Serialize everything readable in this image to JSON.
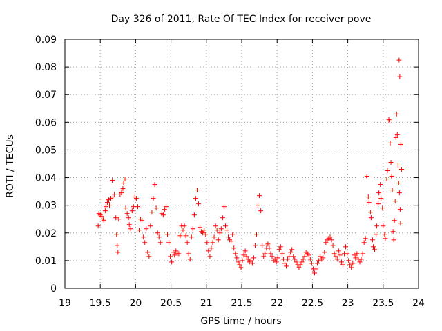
{
  "chart_data": {
    "type": "scatter",
    "title": "Day 326 of 2011, Rate Of TEC Index for receiver pove",
    "xlabel": "GPS time / hours",
    "ylabel": "ROTI / TECUs",
    "xlim": [
      19,
      24
    ],
    "ylim": [
      0,
      0.09
    ],
    "xticks": [
      19,
      19.5,
      20,
      20.5,
      21,
      21.5,
      22,
      22.5,
      23,
      23.5,
      24
    ],
    "xtick_labels": [
      "19",
      "19.5",
      "20",
      "20.5",
      "21",
      "21.5",
      "22",
      "22.5",
      "23",
      "23.5",
      "24"
    ],
    "yticks": [
      0,
      0.01,
      0.02,
      0.03,
      0.04,
      0.05,
      0.06,
      0.07,
      0.08,
      0.09
    ],
    "ytick_labels": [
      "0",
      "0.01",
      "0.02",
      "0.03",
      "0.04",
      "0.05",
      "0.06",
      "0.07",
      "0.08",
      "0.09"
    ],
    "grid": true,
    "marker": "+",
    "color": "#ff0000",
    "series": [
      {
        "name": "ROTI",
        "points": [
          [
            19.47,
            0.0225
          ],
          [
            19.48,
            0.027
          ],
          [
            19.5,
            0.0265
          ],
          [
            19.52,
            0.026
          ],
          [
            19.54,
            0.025
          ],
          [
            19.55,
            0.0245
          ],
          [
            19.57,
            0.028
          ],
          [
            19.58,
            0.0295
          ],
          [
            19.6,
            0.031
          ],
          [
            19.62,
            0.032
          ],
          [
            19.63,
            0.03
          ],
          [
            19.65,
            0.0325
          ],
          [
            19.67,
            0.039
          ],
          [
            19.68,
            0.033
          ],
          [
            19.7,
            0.034
          ],
          [
            19.72,
            0.0255
          ],
          [
            19.73,
            0.0195
          ],
          [
            19.74,
            0.0155
          ],
          [
            19.75,
            0.013
          ],
          [
            19.76,
            0.025
          ],
          [
            19.78,
            0.034
          ],
          [
            19.8,
            0.0345
          ],
          [
            19.82,
            0.036
          ],
          [
            19.83,
            0.038
          ],
          [
            19.85,
            0.0395
          ],
          [
            19.86,
            0.029
          ],
          [
            19.88,
            0.027
          ],
          [
            19.9,
            0.0255
          ],
          [
            19.91,
            0.023
          ],
          [
            19.93,
            0.0215
          ],
          [
            19.95,
            0.028
          ],
          [
            19.97,
            0.0295
          ],
          [
            19.99,
            0.033
          ],
          [
            20.01,
            0.0325
          ],
          [
            20.03,
            0.0295
          ],
          [
            20.05,
            0.021
          ],
          [
            20.07,
            0.025
          ],
          [
            20.09,
            0.0245
          ],
          [
            20.11,
            0.0185
          ],
          [
            20.13,
            0.0165
          ],
          [
            20.15,
            0.0215
          ],
          [
            20.17,
            0.013
          ],
          [
            20.19,
            0.0115
          ],
          [
            20.21,
            0.0225
          ],
          [
            20.23,
            0.0275
          ],
          [
            20.25,
            0.0325
          ],
          [
            20.27,
            0.0375
          ],
          [
            20.29,
            0.029
          ],
          [
            20.31,
            0.02
          ],
          [
            20.33,
            0.0185
          ],
          [
            20.35,
            0.0165
          ],
          [
            20.37,
            0.027
          ],
          [
            20.39,
            0.0265
          ],
          [
            20.41,
            0.0285
          ],
          [
            20.43,
            0.0295
          ],
          [
            20.45,
            0.0195
          ],
          [
            20.47,
            0.0165
          ],
          [
            20.49,
            0.0115
          ],
          [
            20.51,
            0.0095
          ],
          [
            20.53,
            0.013
          ],
          [
            20.55,
            0.012
          ],
          [
            20.57,
            0.0135
          ],
          [
            20.59,
            0.0125
          ],
          [
            20.61,
            0.0125
          ],
          [
            20.63,
            0.019
          ],
          [
            20.65,
            0.0225
          ],
          [
            20.67,
            0.021
          ],
          [
            20.69,
            0.0225
          ],
          [
            20.71,
            0.019
          ],
          [
            20.73,
            0.0165
          ],
          [
            20.75,
            0.0125
          ],
          [
            20.77,
            0.0105
          ],
          [
            20.79,
            0.0185
          ],
          [
            20.81,
            0.0215
          ],
          [
            20.83,
            0.0265
          ],
          [
            20.85,
            0.0325
          ],
          [
            20.87,
            0.0355
          ],
          [
            20.89,
            0.0305
          ],
          [
            20.91,
            0.022
          ],
          [
            20.93,
            0.0205
          ],
          [
            20.95,
            0.02
          ],
          [
            20.97,
            0.021
          ],
          [
            20.99,
            0.0195
          ],
          [
            21.01,
            0.0165
          ],
          [
            21.03,
            0.0135
          ],
          [
            21.05,
            0.0115
          ],
          [
            21.07,
            0.0145
          ],
          [
            21.09,
            0.0165
          ],
          [
            21.11,
            0.0185
          ],
          [
            21.13,
            0.0225
          ],
          [
            21.15,
            0.021
          ],
          [
            21.17,
            0.0175
          ],
          [
            21.19,
            0.02
          ],
          [
            21.21,
            0.0215
          ],
          [
            21.23,
            0.0255
          ],
          [
            21.25,
            0.0295
          ],
          [
            21.27,
            0.0225
          ],
          [
            21.29,
            0.021
          ],
          [
            21.31,
            0.0185
          ],
          [
            21.33,
            0.0175
          ],
          [
            21.35,
            0.017
          ],
          [
            21.37,
            0.0195
          ],
          [
            21.39,
            0.0145
          ],
          [
            21.41,
            0.0125
          ],
          [
            21.43,
            0.011
          ],
          [
            21.45,
            0.0095
          ],
          [
            21.47,
            0.0085
          ],
          [
            21.49,
            0.0075
          ],
          [
            21.51,
            0.01
          ],
          [
            21.53,
            0.012
          ],
          [
            21.55,
            0.0135
          ],
          [
            21.57,
            0.0115
          ],
          [
            21.59,
            0.0105
          ],
          [
            21.61,
            0.0095
          ],
          [
            21.63,
            0.01
          ],
          [
            21.65,
            0.009
          ],
          [
            21.67,
            0.011
          ],
          [
            21.69,
            0.0155
          ],
          [
            21.71,
            0.0195
          ],
          [
            21.73,
            0.03
          ],
          [
            21.75,
            0.0335
          ],
          [
            21.77,
            0.028
          ],
          [
            21.79,
            0.0155
          ],
          [
            21.81,
            0.0115
          ],
          [
            21.83,
            0.0125
          ],
          [
            21.85,
            0.0145
          ],
          [
            21.87,
            0.016
          ],
          [
            21.89,
            0.0145
          ],
          [
            21.91,
            0.0125
          ],
          [
            21.93,
            0.0115
          ],
          [
            21.95,
            0.01
          ],
          [
            21.97,
            0.0105
          ],
          [
            21.99,
            0.0095
          ],
          [
            22.01,
            0.011
          ],
          [
            22.03,
            0.014
          ],
          [
            22.05,
            0.015
          ],
          [
            22.07,
            0.0125
          ],
          [
            22.09,
            0.0105
          ],
          [
            22.11,
            0.009
          ],
          [
            22.13,
            0.008
          ],
          [
            22.15,
            0.0105
          ],
          [
            22.17,
            0.0115
          ],
          [
            22.19,
            0.013
          ],
          [
            22.21,
            0.014
          ],
          [
            22.23,
            0.0115
          ],
          [
            22.25,
            0.0105
          ],
          [
            22.27,
            0.0095
          ],
          [
            22.29,
            0.0085
          ],
          [
            22.31,
            0.0075
          ],
          [
            22.33,
            0.0085
          ],
          [
            22.35,
            0.0095
          ],
          [
            22.37,
            0.0105
          ],
          [
            22.39,
            0.0115
          ],
          [
            22.41,
            0.013
          ],
          [
            22.43,
            0.0125
          ],
          [
            22.45,
            0.012
          ],
          [
            22.47,
            0.0105
          ],
          [
            22.49,
            0.009
          ],
          [
            22.51,
            0.007
          ],
          [
            22.53,
            0.0055
          ],
          [
            22.55,
            0.007
          ],
          [
            22.57,
            0.009
          ],
          [
            22.59,
            0.01
          ],
          [
            22.61,
            0.0115
          ],
          [
            22.63,
            0.0105
          ],
          [
            22.65,
            0.011
          ],
          [
            22.67,
            0.013
          ],
          [
            22.69,
            0.0165
          ],
          [
            22.71,
            0.0175
          ],
          [
            22.73,
            0.018
          ],
          [
            22.75,
            0.0185
          ],
          [
            22.77,
            0.0175
          ],
          [
            22.79,
            0.0155
          ],
          [
            22.81,
            0.0125
          ],
          [
            22.83,
            0.0115
          ],
          [
            22.85,
            0.0105
          ],
          [
            22.87,
            0.0135
          ],
          [
            22.89,
            0.012
          ],
          [
            22.91,
            0.0095
          ],
          [
            22.93,
            0.0085
          ],
          [
            22.95,
            0.0125
          ],
          [
            22.97,
            0.015
          ],
          [
            22.99,
            0.0125
          ],
          [
            23.01,
            0.01
          ],
          [
            23.03,
            0.0085
          ],
          [
            23.05,
            0.0075
          ],
          [
            23.07,
            0.009
          ],
          [
            23.09,
            0.012
          ],
          [
            23.11,
            0.011
          ],
          [
            23.13,
            0.0125
          ],
          [
            23.15,
            0.0105
          ],
          [
            23.17,
            0.0095
          ],
          [
            23.19,
            0.0105
          ],
          [
            23.21,
            0.0125
          ],
          [
            23.23,
            0.0165
          ],
          [
            23.25,
            0.018
          ],
          [
            23.27,
            0.0405
          ],
          [
            23.29,
            0.033
          ],
          [
            23.3,
            0.031
          ],
          [
            23.32,
            0.0275
          ],
          [
            23.33,
            0.0255
          ],
          [
            23.35,
            0.0175
          ],
          [
            23.36,
            0.015
          ],
          [
            23.38,
            0.014
          ],
          [
            23.4,
            0.0195
          ],
          [
            23.41,
            0.0225
          ],
          [
            23.43,
            0.0305
          ],
          [
            23.44,
            0.0345
          ],
          [
            23.46,
            0.0375
          ],
          [
            23.47,
            0.0325
          ],
          [
            23.49,
            0.029
          ],
          [
            23.5,
            0.0225
          ],
          [
            23.52,
            0.0195
          ],
          [
            23.53,
            0.018
          ],
          [
            23.55,
            0.0395
          ],
          [
            23.56,
            0.0425
          ],
          [
            23.58,
            0.061
          ],
          [
            23.59,
            0.0605
          ],
          [
            23.6,
            0.0525
          ],
          [
            23.61,
            0.0455
          ],
          [
            23.62,
            0.0405
          ],
          [
            23.63,
            0.0355
          ],
          [
            23.64,
            0.0205
          ],
          [
            23.65,
            0.0175
          ],
          [
            23.66,
            0.0245
          ],
          [
            23.67,
            0.0315
          ],
          [
            23.68,
            0.0545
          ],
          [
            23.69,
            0.063
          ],
          [
            23.7,
            0.0555
          ],
          [
            23.71,
            0.0445
          ],
          [
            23.72,
            0.038
          ],
          [
            23.73,
            0.0345
          ],
          [
            23.74,
            0.0285
          ],
          [
            23.745,
            0.0235
          ],
          [
            23.75,
            0.052
          ],
          [
            23.76,
            0.043
          ],
          [
            23.725,
            0.0825
          ],
          [
            23.735,
            0.0765
          ]
        ]
      }
    ]
  }
}
